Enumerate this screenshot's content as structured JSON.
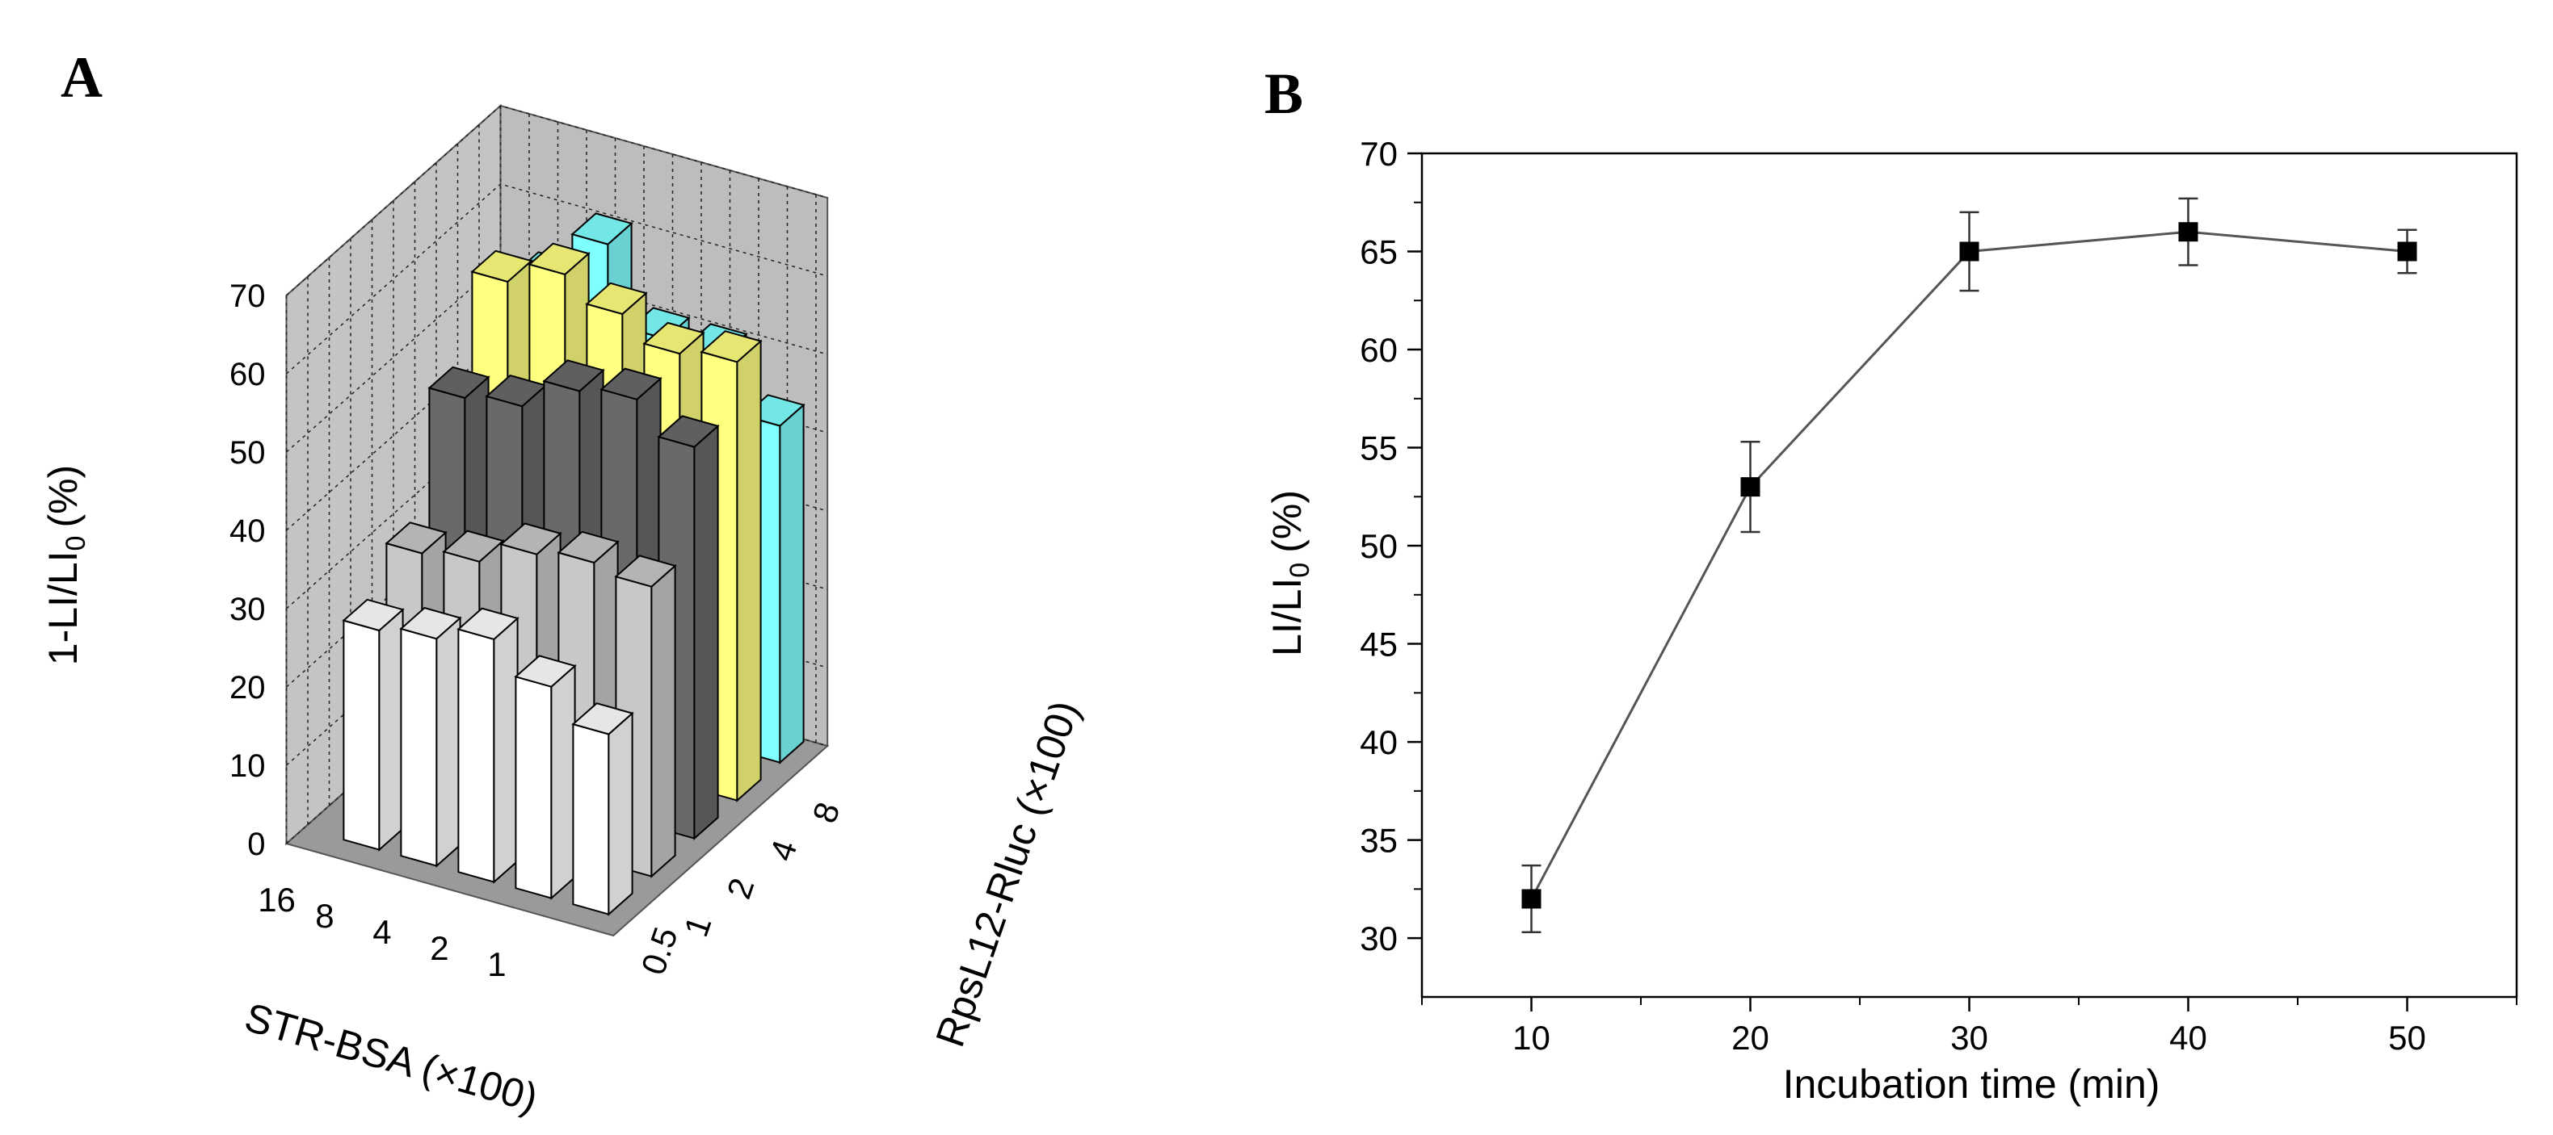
{
  "panels": {
    "a_label": "A",
    "b_label": "B"
  },
  "colors": {
    "white_bar": "#ffffff",
    "light_gray_bar": "#c8c8c8",
    "dark_gray_bar": "#696969",
    "yellow_bar": "#ffff80",
    "cyan_bar": "#80ffff",
    "wall": "#bdbdbd",
    "floor": "#9a9a9a",
    "line": "#555555",
    "marker": "#000000"
  },
  "chart_data": [
    {
      "type": "bar3d",
      "panel": "A",
      "title": "",
      "zlabel": "1-LI/LI",
      "zlabel_sub": "0",
      "zlabel_unit": "(%)",
      "xlabel": "STR-BSA (×100)",
      "ylabel": "RpsL12-Rluc (×100)",
      "zlim": [
        0,
        70
      ],
      "z_ticks": [
        "0",
        "10",
        "20",
        "30",
        "40",
        "50",
        "60",
        "70"
      ],
      "str_bsa": [
        "16",
        "8",
        "4",
        "2",
        "1"
      ],
      "rpsl12": [
        "0.5",
        "1",
        "2",
        "4",
        "8"
      ],
      "series": [
        {
          "name": "0.5",
          "color": "#ffffff",
          "values": [
            28,
            29,
            31,
            27,
            23
          ]
        },
        {
          "name": "1",
          "color": "#c8c8c8",
          "values": [
            33,
            34,
            37,
            38,
            37
          ]
        },
        {
          "name": "2",
          "color": "#696969",
          "values": [
            48,
            49,
            53,
            54,
            50
          ]
        },
        {
          "name": "4",
          "color": "#ffff80",
          "values": [
            58,
            61,
            58,
            55,
            56
          ]
        },
        {
          "name": "8",
          "color": "#80ffff",
          "values": [
            53,
            60,
            50,
            50,
            43
          ]
        }
      ],
      "grid": true
    },
    {
      "type": "line",
      "panel": "B",
      "title": "",
      "xlabel": "Incubation time (min)",
      "ylabel": "LI/LI",
      "ylabel_sub": "0",
      "ylabel_unit": "(%)",
      "x": [
        10,
        20,
        30,
        40,
        50
      ],
      "y": [
        32,
        53,
        65,
        66,
        65
      ],
      "yerr": [
        1.7,
        2.3,
        2.0,
        1.7,
        1.1
      ],
      "xlim": [
        5,
        55
      ],
      "ylim": [
        27,
        70
      ],
      "x_ticks": [
        "10",
        "20",
        "30",
        "40",
        "50"
      ],
      "y_ticks": [
        "30",
        "35",
        "40",
        "45",
        "50",
        "55",
        "60",
        "65",
        "70"
      ],
      "marker": "square",
      "grid": false
    }
  ]
}
